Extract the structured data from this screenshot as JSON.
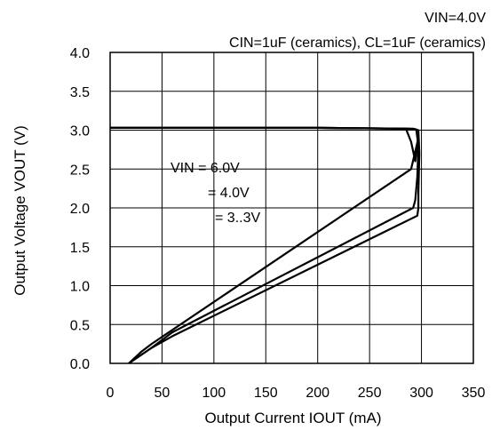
{
  "chart_data": {
    "type": "line",
    "title": "VIN=4.0V",
    "subtitle": "CIN=1uF (ceramics), CL=1uF (ceramics)",
    "xlabel": "Output Current IOUT (mA)",
    "ylabel": "Output Voltage VOUT (V)",
    "xlim": [
      0,
      350
    ],
    "ylim": [
      0,
      4.0
    ],
    "xticks": [
      0,
      50,
      100,
      150,
      200,
      250,
      300,
      350
    ],
    "yticks": [
      0.0,
      0.5,
      1.0,
      1.5,
      2.0,
      2.5,
      3.0,
      3.5,
      4.0
    ],
    "xtick_labels": [
      "0",
      "50",
      "100",
      "150",
      "200",
      "250",
      "300",
      "350"
    ],
    "ytick_labels": [
      "0.0",
      "0.5",
      "1.0",
      "1.5",
      "2.0",
      "2.5",
      "3.0",
      "3.5",
      "4.0"
    ],
    "grid": true,
    "annotations": [
      "VIN =   6.0V",
      "=   4.0V",
      "= 3..3V"
    ],
    "series": [
      {
        "x": [
          0,
          100,
          200,
          285,
          290,
          294,
          297,
          295,
          290,
          40,
          30,
          18
        ],
        "y": [
          3.03,
          3.03,
          3.03,
          3.02,
          2.85,
          2.6,
          2.9,
          2.78,
          2.5,
          0.25,
          0.15,
          0.0
        ]
      },
      {
        "x": [
          0,
          100,
          200,
          288,
          295,
          297,
          296,
          294,
          292,
          60,
          40,
          18
        ],
        "y": [
          3.03,
          3.03,
          3.03,
          3.02,
          3.01,
          2.8,
          2.4,
          2.1,
          2.0,
          0.4,
          0.2,
          0.0
        ]
      },
      {
        "x": [
          0,
          100,
          200,
          292,
          297,
          298,
          297,
          297,
          296,
          60,
          40,
          18
        ],
        "y": [
          3.03,
          3.03,
          3.03,
          3.02,
          3.0,
          2.7,
          2.2,
          2.0,
          1.9,
          0.35,
          0.2,
          0.0
        ]
      }
    ]
  }
}
